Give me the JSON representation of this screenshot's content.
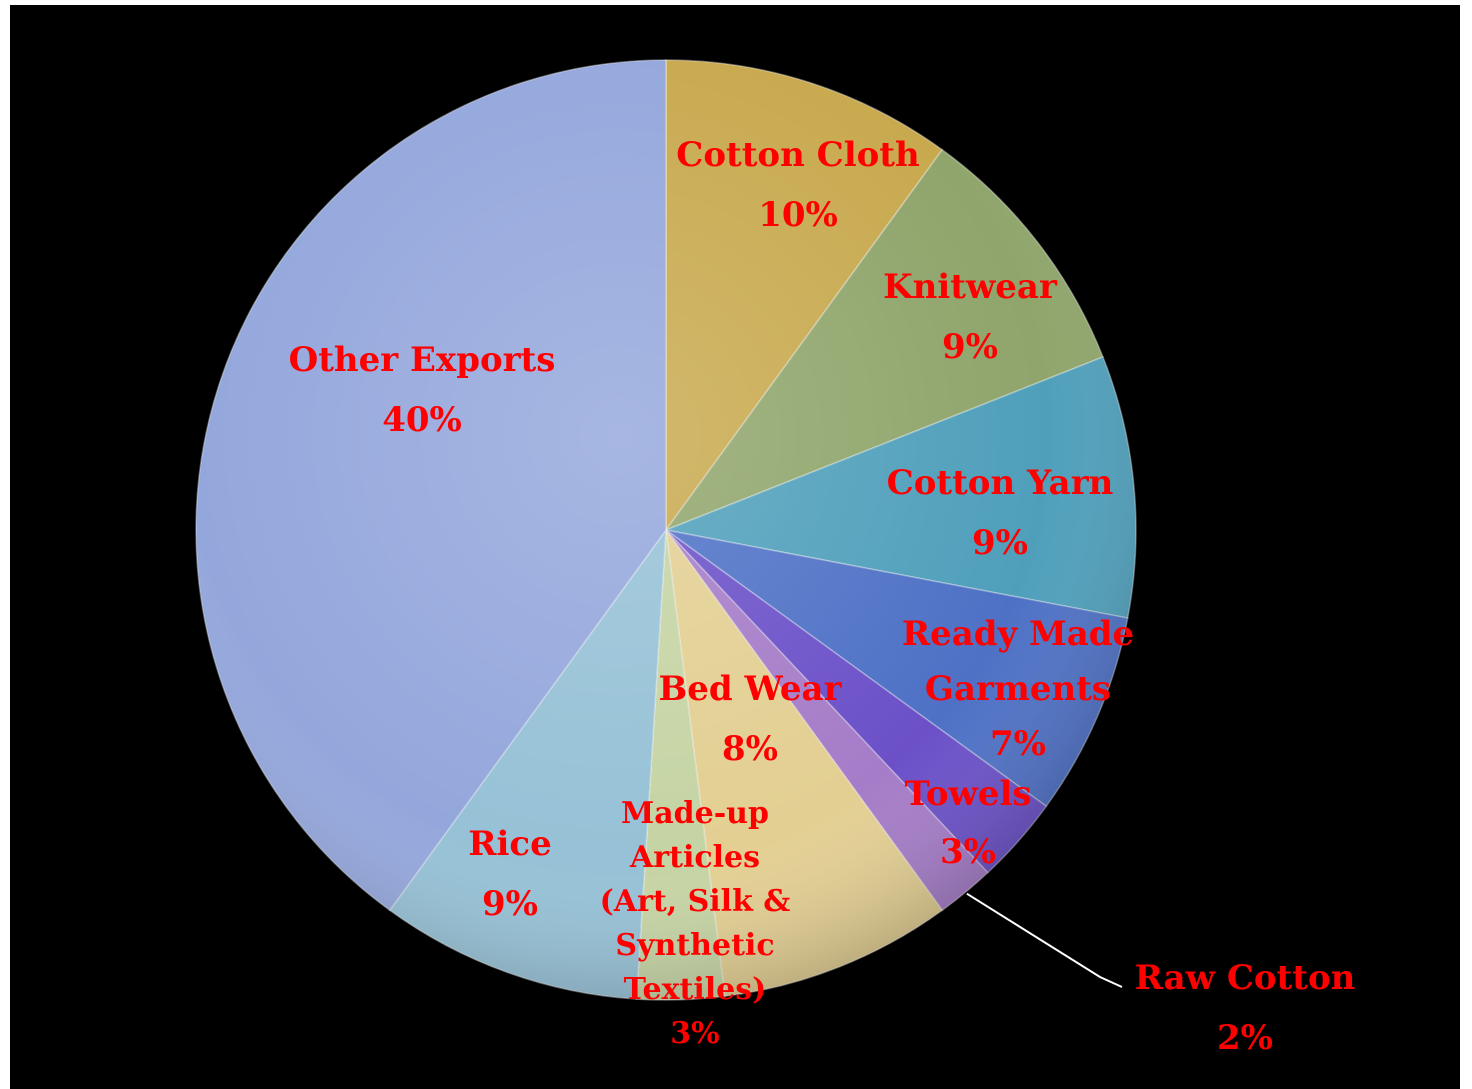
{
  "chart_data": {
    "type": "pie",
    "title": "",
    "start_angle_deg": 0,
    "direction": "clockwise",
    "slices": [
      {
        "name": "Cotton Cloth",
        "value": 10,
        "label": [
          "Cotton Cloth",
          "10%"
        ],
        "color": "#c8a94e"
      },
      {
        "name": "Knitwear",
        "value": 9,
        "label": [
          "Knitwear",
          "9%"
        ],
        "color": "#8fa56b"
      },
      {
        "name": "Cotton Yarn",
        "value": 9,
        "label": [
          "Cotton Yarn",
          "9%"
        ],
        "color": "#4f9fbb"
      },
      {
        "name": "Ready Made Garments",
        "value": 7,
        "label": [
          "Ready Made",
          "Garments",
          "7%"
        ],
        "color": "#4e71c6"
      },
      {
        "name": "Towels",
        "value": 3,
        "label": [
          "Towels",
          "3%"
        ],
        "color": "#6b50c8"
      },
      {
        "name": "Raw Cotton",
        "value": 2,
        "label": [
          "Raw Cotton",
          "2%"
        ],
        "color": "#a57cc8"
      },
      {
        "name": "Bed Wear",
        "value": 8,
        "label": [
          "Bed Wear",
          "8%"
        ],
        "color": "#e3cf92"
      },
      {
        "name": "Made-up Articles (Art, Silk & Synthetic Textiles)",
        "value": 3,
        "label": [
          "Made-up",
          "Articles",
          "(Art, Silk &",
          "Synthetic",
          "Textiles)",
          "3%"
        ],
        "color": "#c5d4a4"
      },
      {
        "name": "Rice",
        "value": 9,
        "label": [
          "Rice",
          "9%"
        ],
        "color": "#96c1d6"
      },
      {
        "name": "Other Exports",
        "value": 40,
        "label": [
          "Other Exports",
          "40%"
        ],
        "color": "#94a7dc"
      }
    ],
    "legend": "none",
    "label_color": "#ff0000",
    "background": "#000000"
  }
}
